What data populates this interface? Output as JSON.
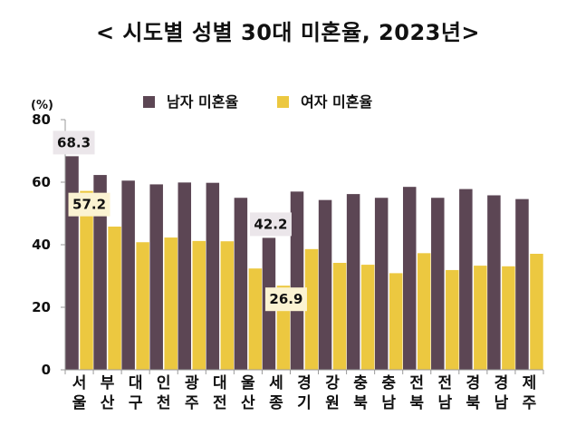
{
  "title": "< 시도별 성별 30대 미혼율, 2023년>",
  "y_unit": "(%)",
  "colors": {
    "male": "#5c4654",
    "female": "#ecc840",
    "axis": "#999999",
    "label_bg": "#ebe6ea",
    "label_bg_female": "#fbf3d2"
  },
  "chart_data": {
    "type": "bar",
    "ylabel": "(%)",
    "ylim": [
      0,
      80
    ],
    "yticks": [
      0,
      20,
      40,
      60,
      80
    ],
    "grid": false,
    "legend_position": "top-center",
    "categories": [
      [
        "서",
        "울"
      ],
      [
        "부",
        "산"
      ],
      [
        "대",
        "구"
      ],
      [
        "인",
        "천"
      ],
      [
        "광",
        "주"
      ],
      [
        "대",
        "전"
      ],
      [
        "울",
        "산"
      ],
      [
        "세",
        "종"
      ],
      [
        "경",
        "기"
      ],
      [
        "강",
        "원"
      ],
      [
        "충",
        "북"
      ],
      [
        "충",
        "남"
      ],
      [
        "전",
        "북"
      ],
      [
        "전",
        "남"
      ],
      [
        "경",
        "북"
      ],
      [
        "경",
        "남"
      ],
      [
        "제",
        "주"
      ]
    ],
    "series": [
      {
        "name": "남자 미혼율",
        "color": "#5c4654",
        "values": [
          68.3,
          62.3,
          60.5,
          59.3,
          59.9,
          59.8,
          55.0,
          42.2,
          57.0,
          54.3,
          56.2,
          55.0,
          58.5,
          55.0,
          57.8,
          55.8,
          54.6
        ]
      },
      {
        "name": "여자 미혼율",
        "color": "#ecc840",
        "values": [
          57.2,
          45.8,
          40.8,
          42.3,
          41.2,
          41.1,
          32.4,
          26.9,
          38.6,
          34.2,
          33.6,
          30.9,
          37.3,
          31.9,
          33.3,
          33.1,
          37.1
        ]
      }
    ],
    "annotations": [
      {
        "text": "68.3",
        "series": 0,
        "index": 0
      },
      {
        "text": "57.2",
        "series": 1,
        "index": 0
      },
      {
        "text": "42.2",
        "series": 0,
        "index": 7
      },
      {
        "text": "26.9",
        "series": 1,
        "index": 7
      }
    ]
  }
}
